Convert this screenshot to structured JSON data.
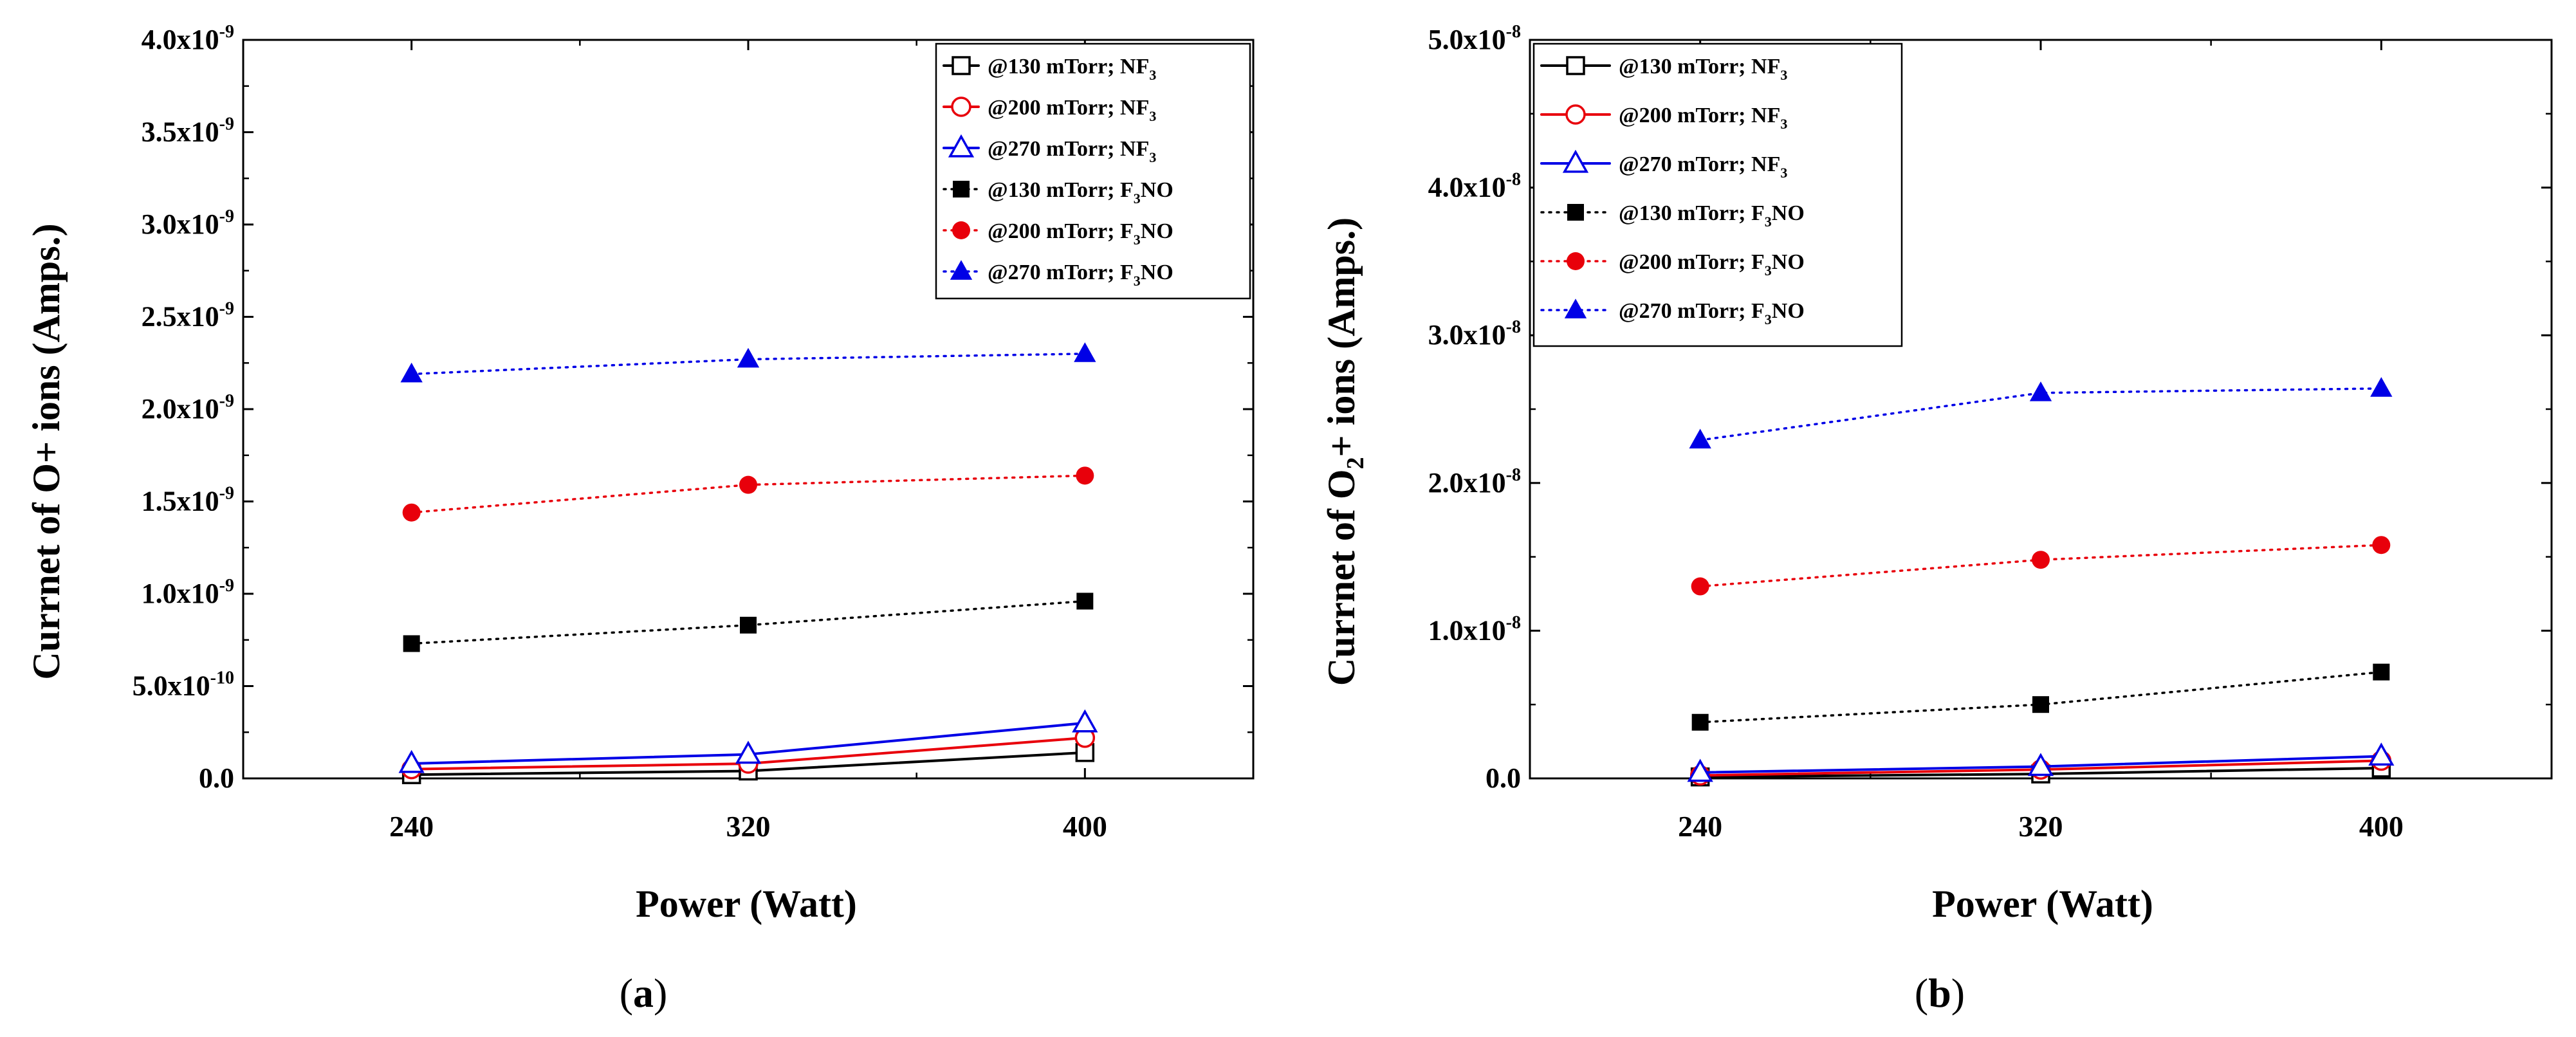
{
  "figure": {
    "panel_a_label": "a",
    "panel_b_label": "b"
  },
  "colors": {
    "series_130": "#000000",
    "series_200": "#e8000b",
    "series_270": "#0000e6"
  },
  "chart_data": [
    {
      "type": "line",
      "panel": "a",
      "xlabel": "Power (Watt)",
      "ylabel": "Currnet of O+ ions (Amps.)",
      "x": [
        240,
        320,
        400
      ],
      "xlim": [
        200,
        440
      ],
      "ylim": [
        0,
        4e-09
      ],
      "yticks": [
        {
          "value": 0,
          "mantissa": "0.0",
          "exponent": ""
        },
        {
          "value": 5e-10,
          "mantissa": "5.0x10",
          "exponent": "-10"
        },
        {
          "value": 1e-09,
          "mantissa": "1.0x10",
          "exponent": "-9"
        },
        {
          "value": 1.5e-09,
          "mantissa": "1.5x10",
          "exponent": "-9"
        },
        {
          "value": 2e-09,
          "mantissa": "2.0x10",
          "exponent": "-9"
        },
        {
          "value": 2.5e-09,
          "mantissa": "2.5x10",
          "exponent": "-9"
        },
        {
          "value": 3e-09,
          "mantissa": "3.0x10",
          "exponent": "-9"
        },
        {
          "value": 3.5e-09,
          "mantissa": "3.5x10",
          "exponent": "-9"
        },
        {
          "value": 4e-09,
          "mantissa": "4.0x10",
          "exponent": "-9"
        }
      ],
      "legend_position": "top-right",
      "series": [
        {
          "name": "@130 mTorr; NF3",
          "label": "@130 mTorr; NF",
          "sub": "3",
          "suffix": "",
          "color_key": "series_130",
          "marker": "square-open",
          "line": "solid",
          "values": [
            2e-11,
            4e-11,
            1.4e-10
          ]
        },
        {
          "name": "@200 mTorr; NF3",
          "label": "@200 mTorr; NF",
          "sub": "3",
          "suffix": "",
          "color_key": "series_200",
          "marker": "circle-open",
          "line": "solid",
          "values": [
            5e-11,
            8e-11,
            2.2e-10
          ]
        },
        {
          "name": "@270 mTorr; NF3",
          "label": "@270 mTorr; NF",
          "sub": "3",
          "suffix": "",
          "color_key": "series_270",
          "marker": "triangle-open",
          "line": "solid",
          "values": [
            8e-11,
            1.3e-10,
            3e-10
          ]
        },
        {
          "name": "@130 mTorr; F3NO",
          "label": "@130 mTorr; F",
          "sub": "3",
          "suffix": "NO",
          "color_key": "series_130",
          "marker": "square-filled",
          "line": "dotted",
          "values": [
            7.3e-10,
            8.3e-10,
            9.6e-10
          ]
        },
        {
          "name": "@200 mTorr; F3NO",
          "label": "@200 mTorr; F",
          "sub": "3",
          "suffix": "NO",
          "color_key": "series_200",
          "marker": "circle-filled",
          "line": "dotted",
          "values": [
            1.44e-09,
            1.59e-09,
            1.64e-09
          ]
        },
        {
          "name": "@270 mTorr; F3NO",
          "label": "@270 mTorr; F",
          "sub": "3",
          "suffix": "NO",
          "color_key": "series_270",
          "marker": "triangle-filled",
          "line": "dotted",
          "values": [
            2.19e-09,
            2.27e-09,
            2.3e-09
          ]
        }
      ]
    },
    {
      "type": "line",
      "panel": "b",
      "xlabel": "Power (Watt)",
      "ylabel_parts": [
        "Currnet of O",
        "2",
        "+ ions (Amps.)"
      ],
      "x": [
        240,
        320,
        400
      ],
      "xlim": [
        200,
        440
      ],
      "ylim": [
        0,
        5e-08
      ],
      "yticks": [
        {
          "value": 0,
          "mantissa": "0.0",
          "exponent": ""
        },
        {
          "value": 1e-08,
          "mantissa": "1.0x10",
          "exponent": "-8"
        },
        {
          "value": 2e-08,
          "mantissa": "2.0x10",
          "exponent": "-8"
        },
        {
          "value": 3e-08,
          "mantissa": "3.0x10",
          "exponent": "-8"
        },
        {
          "value": 4e-08,
          "mantissa": "4.0x10",
          "exponent": "-8"
        },
        {
          "value": 5e-08,
          "mantissa": "5.0x10",
          "exponent": "-8"
        }
      ],
      "legend_position": "top-left",
      "series": [
        {
          "name": "@130 mTorr; NF3",
          "label": "@130 mTorr; NF",
          "sub": "3",
          "suffix": "",
          "color_key": "series_130",
          "marker": "square-open",
          "line": "solid",
          "values": [
            1e-10,
            3e-10,
            7e-10
          ]
        },
        {
          "name": "@200 mTorr; NF3",
          "label": "@200 mTorr; NF",
          "sub": "3",
          "suffix": "",
          "color_key": "series_200",
          "marker": "circle-open",
          "line": "solid",
          "values": [
            2e-10,
            6e-10,
            1.2e-09
          ]
        },
        {
          "name": "@270 mTorr; NF3",
          "label": "@270 mTorr; NF",
          "sub": "3",
          "suffix": "",
          "color_key": "series_270",
          "marker": "triangle-open",
          "line": "solid",
          "values": [
            4e-10,
            8e-10,
            1.5e-09
          ]
        },
        {
          "name": "@130 mTorr; F3NO",
          "label": "@130 mTorr; F",
          "sub": "3",
          "suffix": "NO",
          "color_key": "series_130",
          "marker": "square-filled",
          "line": "dotted",
          "values": [
            3.8e-09,
            5e-09,
            7.2e-09
          ]
        },
        {
          "name": "@200 mTorr; F3NO",
          "label": "@200 mTorr; F",
          "sub": "3",
          "suffix": "NO",
          "color_key": "series_200",
          "marker": "circle-filled",
          "line": "dotted",
          "values": [
            1.3e-08,
            1.48e-08,
            1.58e-08
          ]
        },
        {
          "name": "@270 mTorr; F3NO",
          "label": "@270 mTorr; F",
          "sub": "3",
          "suffix": "NO",
          "color_key": "series_270",
          "marker": "triangle-filled",
          "line": "dotted",
          "values": [
            2.29e-08,
            2.61e-08,
            2.64e-08
          ]
        }
      ]
    }
  ]
}
